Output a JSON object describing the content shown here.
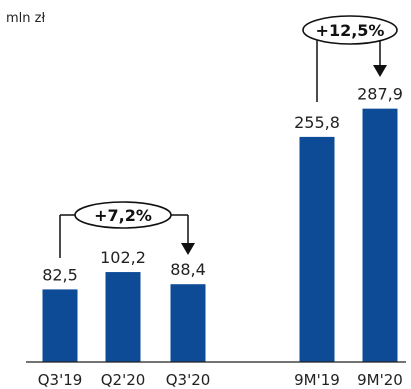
{
  "chart_data": {
    "type": "bar",
    "unit": "mln zł",
    "categories": [
      "Q3'19",
      "Q2'20",
      "Q3'20",
      "9M'19",
      "9M'20"
    ],
    "values": [
      82.5,
      102.2,
      88.4,
      255.8,
      287.9
    ],
    "value_labels": [
      "82,5",
      "102,2",
      "88,4",
      "255,8",
      "287,9"
    ],
    "bar_color": "#0d4b97",
    "annotations": [
      {
        "label": "+7,2%",
        "from": "Q3'19",
        "to": "Q3'20"
      },
      {
        "label": "+12,5%",
        "from": "9M'19",
        "to": "9M'20"
      }
    ]
  }
}
